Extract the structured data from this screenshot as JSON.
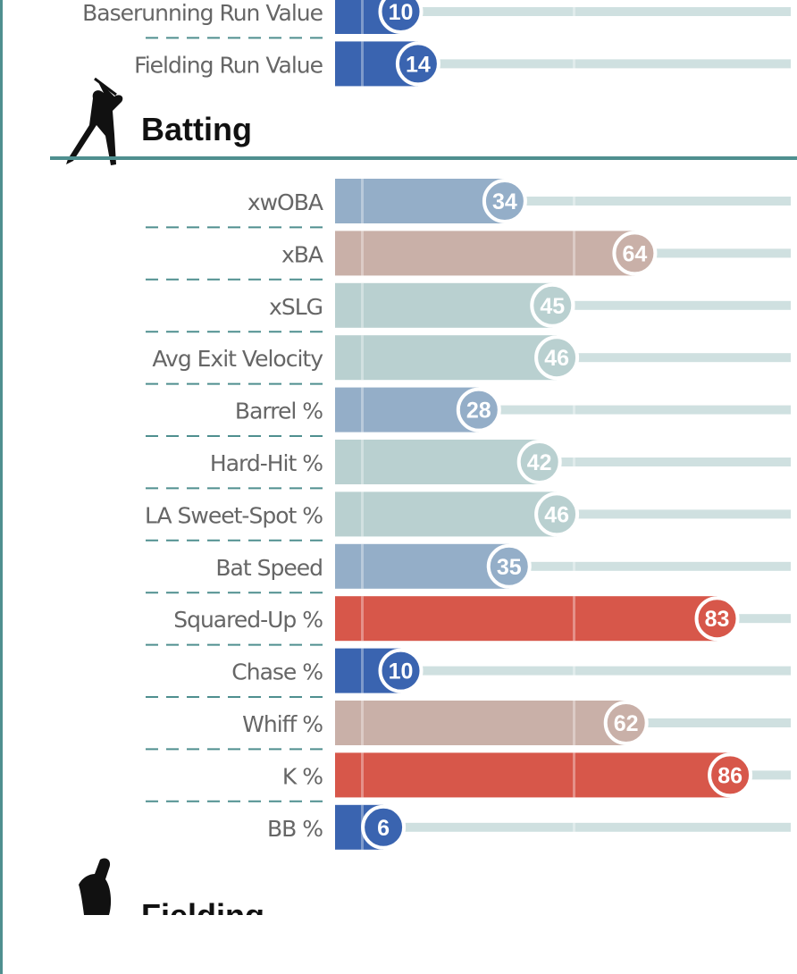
{
  "chart_data": {
    "type": "bar",
    "orientation": "horizontal",
    "value_label": "percentile",
    "xlim": [
      0,
      100
    ],
    "colors": {
      "low": "#3a64b0",
      "mid_low": "#94aec8",
      "mid": "#b9d0d0",
      "mid_high": "#c9b0a8",
      "high": "#d7574a",
      "track": "#cfe0e0",
      "divider": "#4f8f8f"
    },
    "sections": [
      {
        "title": "",
        "icon": "",
        "rows": [
          {
            "label": "Baserunning Run Value",
            "value": 10
          },
          {
            "label": "Fielding Run Value",
            "value": 14
          }
        ]
      },
      {
        "title": "Batting",
        "icon": "batter-silhouette-icon",
        "rows": [
          {
            "label": "xwOBA",
            "value": 34
          },
          {
            "label": "xBA",
            "value": 64
          },
          {
            "label": "xSLG",
            "value": 45
          },
          {
            "label": "Avg Exit Velocity",
            "value": 46
          },
          {
            "label": "Barrel %",
            "value": 28
          },
          {
            "label": "Hard-Hit %",
            "value": 42
          },
          {
            "label": "LA Sweet-Spot %",
            "value": 46
          },
          {
            "label": "Bat Speed",
            "value": 35
          },
          {
            "label": "Squared-Up %",
            "value": 83
          },
          {
            "label": "Chase %",
            "value": 10
          },
          {
            "label": "Whiff %",
            "value": 62
          },
          {
            "label": "K %",
            "value": 86
          },
          {
            "label": "BB %",
            "value": 6
          }
        ]
      },
      {
        "title": "Fielding",
        "icon": "fielder-silhouette-icon",
        "rows": []
      }
    ]
  }
}
